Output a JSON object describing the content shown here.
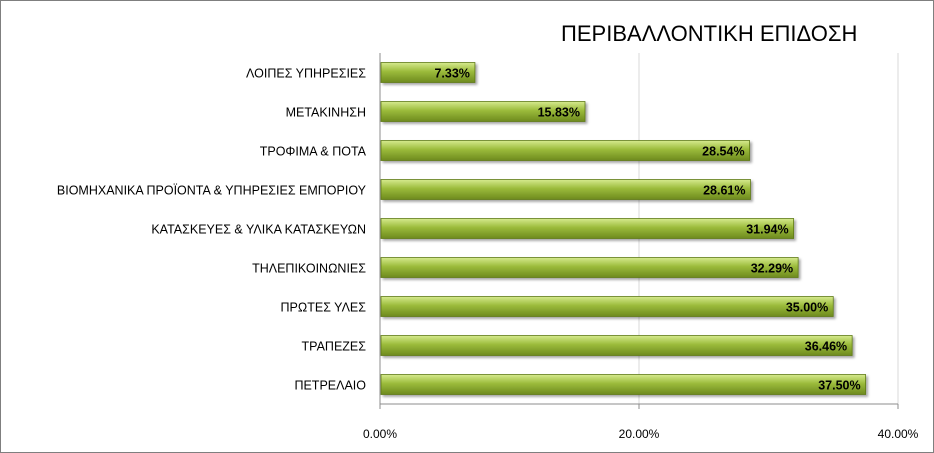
{
  "chart_data": {
    "type": "bar",
    "orientation": "horizontal",
    "title": "ΠΕΡΙΒΑΛΛΟΝΤΙΚΗ ΕΠΙΔΟΣΗ",
    "categories": [
      "ΛΟΙΠΕΣ ΥΠΗΡΕΣΙΕΣ",
      "ΜΕΤΑΚΙΝΗΣΗ",
      "ΤΡΟΦΙΜΑ & ΠΟΤΑ",
      "ΒΙΟΜΗΧΑΝΙΚΑ ΠΡΟΪΟΝΤΑ & ΥΠΗΡΕΣΙΕΣ ΕΜΠΟΡΙΟΥ",
      "ΚΑΤΑΣΚΕΥΕΣ & ΥΛΙΚΑ ΚΑΤΑΣΚΕΥΩΝ",
      "ΤΗΛΕΠΙΚΟΙΝΩΝΙΕΣ",
      "ΠΡΩΤΕΣ ΥΛΕΣ",
      "ΤΡΑΠΕΖΕΣ",
      "ΠΕΤΡΕΛΑΙΟ"
    ],
    "values": [
      7.33,
      15.83,
      28.54,
      28.61,
      31.94,
      32.29,
      35.0,
      36.46,
      37.5
    ],
    "data_labels": [
      "7.33%",
      "15.83%",
      "28.54%",
      "28.61%",
      "31.94%",
      "32.29%",
      "35.00%",
      "36.46%",
      "37.50%"
    ],
    "xlim": [
      0,
      40
    ],
    "x_ticks": [
      0,
      20,
      40
    ],
    "x_tick_labels": [
      "0.00%",
      "20.00%",
      "40.00%"
    ],
    "grid": "vertical",
    "bar_color": "#9bbb3b",
    "bar_color_light": "#d6ea8e",
    "bar_color_dark": "#6e8a1e"
  }
}
